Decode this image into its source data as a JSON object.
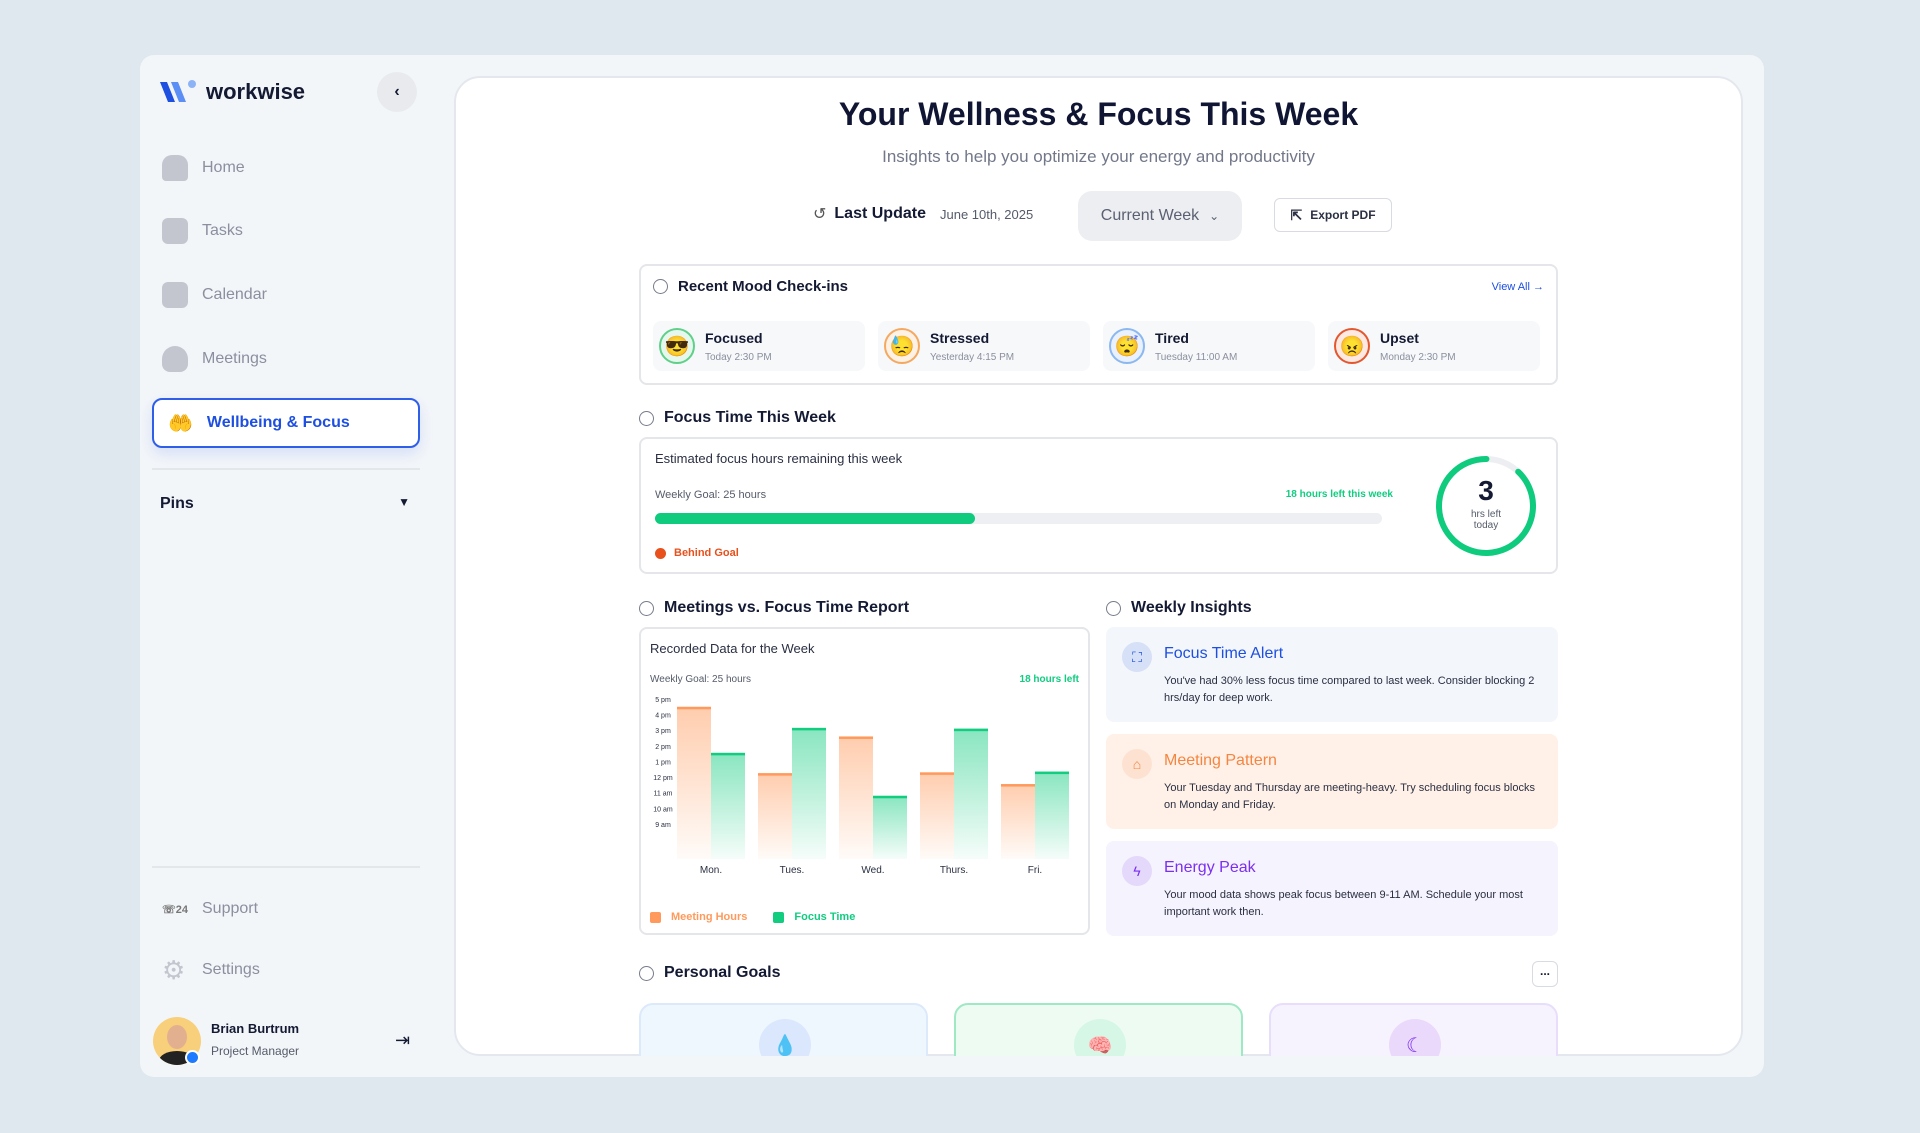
{
  "brand": {
    "name": "workwise"
  },
  "sidebar": {
    "items": [
      {
        "label": "Home",
        "icon": "home-icon"
      },
      {
        "label": "Tasks",
        "icon": "presentation-icon"
      },
      {
        "label": "Calendar",
        "icon": "calendar-icon"
      },
      {
        "label": "Meetings",
        "icon": "group-icon"
      }
    ],
    "active": {
      "label": "Wellbeing & Focus",
      "icon": "hand-person-icon"
    },
    "pins_label": "Pins",
    "support_label": "Support",
    "settings_label": "Settings",
    "user": {
      "name": "Brian Burtrum",
      "role": "Project Manager"
    }
  },
  "header": {
    "title": "Your Wellness & Focus This Week",
    "subtitle": "Insights to help you optimize your energy and productivity",
    "last_update_label": "Last Update",
    "last_update_value": "June 10th, 2025",
    "period_select": "Current Week",
    "export_label": "Export PDF"
  },
  "mood": {
    "title": "Recent Mood Check-ins",
    "view_all": "View All",
    "items": [
      {
        "label": "Focused",
        "time": "Today 2:30 PM",
        "emoji": "😎",
        "color": "#5fd08a",
        "bg": "#e6f8ee"
      },
      {
        "label": "Stressed",
        "time": "Yesterday 4:15 PM",
        "emoji": "😓",
        "color": "#f5a860",
        "bg": "#fff1e4"
      },
      {
        "label": "Tired",
        "time": "Tuesday 11:00 AM",
        "emoji": "😴",
        "color": "#8cb8f0",
        "bg": "#e8f1fd"
      },
      {
        "label": "Upset",
        "time": "Monday 2:30 PM",
        "emoji": "😠",
        "color": "#e4572e",
        "bg": "#fde9e2"
      }
    ]
  },
  "focus": {
    "title": "Focus Time This Week",
    "subtitle": "Estimated focus hours remaining this week",
    "goal": "Weekly Goal: 25 hours",
    "left": "18 hours left this week",
    "progress_percent": 44,
    "status": "Behind Goal",
    "ring_value": "3",
    "ring_label": "hrs left today",
    "ring_percent": 88
  },
  "report": {
    "title": "Meetings vs. Focus Time Report",
    "card_title": "Recorded Data for the Week",
    "goal": "Weekly Goal: 25 hours",
    "left": "18 hours left"
  },
  "chart_data": {
    "type": "bar",
    "categories": [
      "Mon.",
      "Tues.",
      "Wed.",
      "Thurs.",
      "Fri."
    ],
    "y_ticks": [
      "9 am",
      "10 am",
      "11 am",
      "12 pm",
      "1 pm",
      "2 pm",
      "3 pm",
      "4 pm",
      "5 pm"
    ],
    "ylim": [
      6.75,
      17
    ],
    "series": [
      {
        "name": "Meeting Hours",
        "color": "#ff9a5c",
        "values": [
          16.5,
          12.25,
          14.6,
          12.3,
          11.55
        ]
      },
      {
        "name": "Focus Time",
        "color": "#12cc80",
        "values": [
          13.55,
          15.15,
          10.8,
          15.1,
          12.35
        ]
      }
    ],
    "legend": "bottom-left",
    "grid": false
  },
  "insights": {
    "title": "Weekly Insights",
    "items": [
      {
        "title": "Focus Time Alert",
        "text": "You've had 30% less focus time compared to last week. Consider blocking 2 hrs/day for deep work.",
        "color": "#1d4fe0",
        "bg": "#f3f6fa",
        "icon": "focus-icon"
      },
      {
        "title": "Meeting Pattern",
        "text": "Your Tuesday and Thursday are meeting-heavy. Try scheduling focus blocks on Monday and Friday.",
        "color": "#f5853f",
        "bg": "#fff1e8",
        "icon": "presentation-icon"
      },
      {
        "title": "Energy Peak",
        "text": "Your mood data shows peak focus between 9-11 AM. Schedule your most important work then.",
        "color": "#7b2ff0",
        "bg": "#f5f3fd",
        "icon": "lightning-icon"
      }
    ]
  },
  "goals": {
    "title": "Personal Goals",
    "more": "..."
  }
}
